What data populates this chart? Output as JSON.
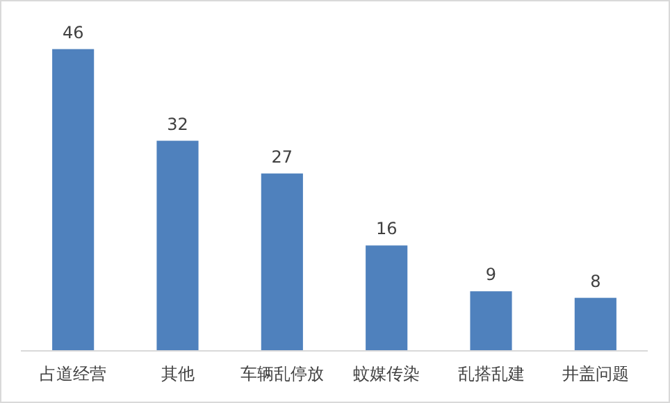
{
  "chart_data": {
    "type": "bar",
    "categories": [
      "占道经营",
      "其他",
      "车辆乱停放",
      "蚊媒传染",
      "乱搭乱建",
      "井盖问题"
    ],
    "values": [
      46,
      32,
      27,
      16,
      9,
      8
    ],
    "color": "#4f81bd",
    "data_labels": true
  }
}
